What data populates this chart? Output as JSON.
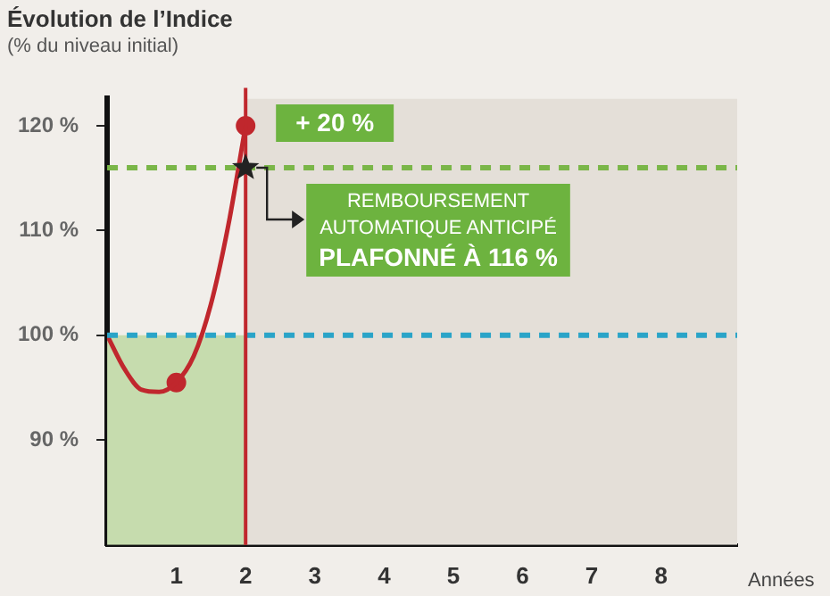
{
  "chart_data": {
    "type": "line",
    "title": "Évolution de l’Indice",
    "subtitle": "(% du niveau initial)",
    "xlabel": "Années",
    "xlim": [
      0,
      9.1
    ],
    "xticks": [
      1,
      2,
      3,
      4,
      5,
      6,
      7,
      8
    ],
    "ylim": [
      80,
      122.6
    ],
    "yticks": [
      {
        "value": 90,
        "label": "90 %"
      },
      {
        "value": 100,
        "label": "100 %"
      },
      {
        "value": 110,
        "label": "110 %"
      },
      {
        "value": 120,
        "label": "120 %"
      }
    ],
    "series": [
      {
        "type": "area",
        "color": "#c6dcae",
        "x": [
          0,
          2
        ],
        "values": [
          100,
          100
        ],
        "marker": "none"
      },
      {
        "type": "line",
        "color": "#c0272d",
        "x": [
          0,
          0.25,
          0.5,
          0.75,
          1,
          1.25,
          1.5,
          1.75,
          2
        ],
        "values": [
          100,
          96.8,
          94.8,
          94.6,
          95.5,
          98,
          103,
          110.5,
          120
        ],
        "marker": "none"
      },
      {
        "type": "scatter",
        "color": "#c0272d",
        "x": [
          1,
          2
        ],
        "values": [
          95.5,
          120
        ],
        "marker": "circle"
      },
      {
        "type": "scatter",
        "color": "#222222",
        "x": [
          2
        ],
        "values": [
          116
        ],
        "marker": "star"
      }
    ],
    "ref_lines": [
      {
        "axis": "y",
        "value": 116,
        "color": "#7ab648",
        "line_style": "dashed"
      },
      {
        "axis": "y",
        "value": 100,
        "color": "#2aa4c8",
        "line_style": "dashed"
      },
      {
        "axis": "x",
        "value": 2,
        "color": "#c0272d",
        "line_style": "solid"
      }
    ],
    "bands": [
      {
        "axis": "x",
        "from": 2,
        "to": 9.1,
        "color": "#e4dfd8"
      }
    ],
    "annotations": [
      {
        "text": "+ 20 %",
        "x": 2,
        "y": 120
      },
      {
        "text": "REMBOURSEMENT\nAUTOMATIQUE ANTICIPÉ\nPLAFONNÉ À 116 %",
        "x": 2,
        "y": 116
      }
    ],
    "grid": false,
    "legend": false
  }
}
